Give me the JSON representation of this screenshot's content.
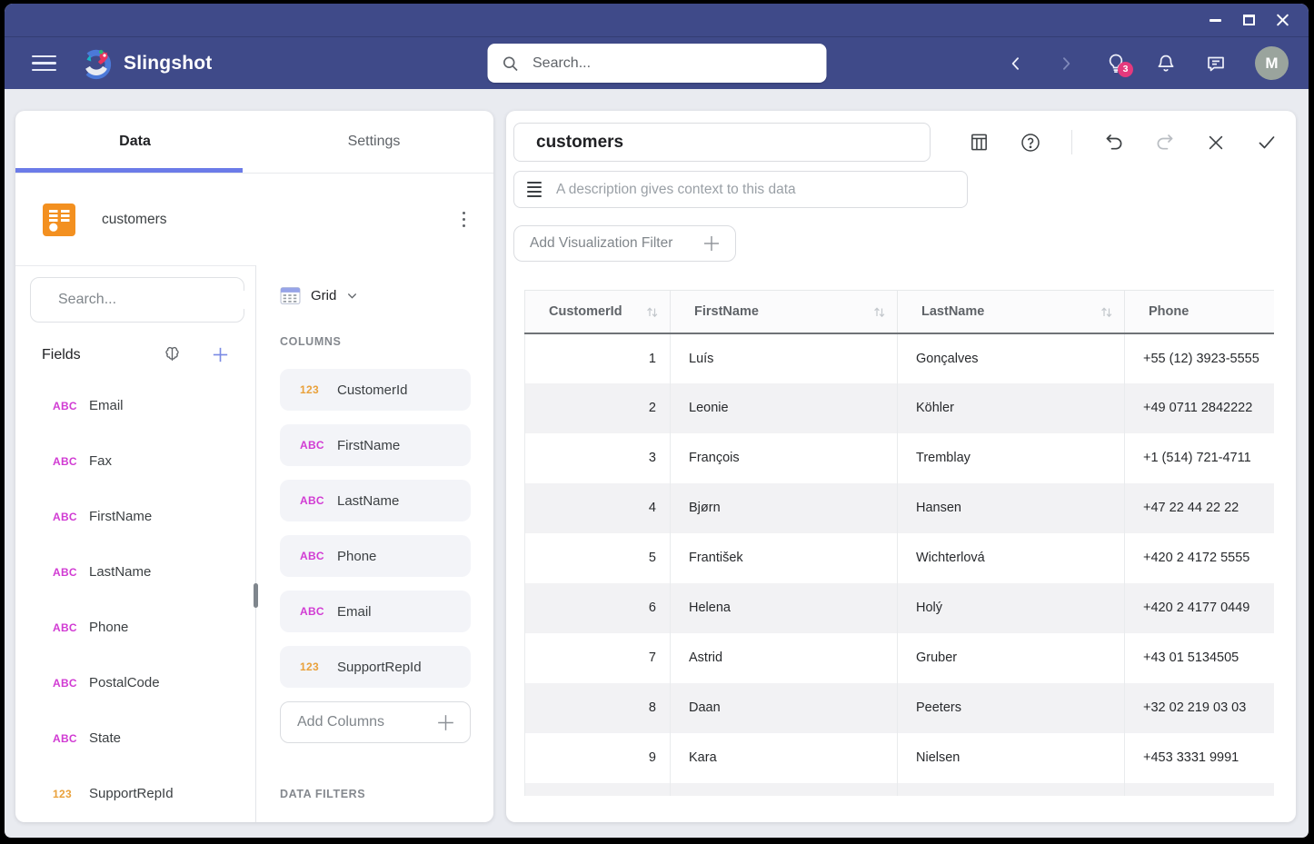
{
  "header": {
    "app_name": "Slingshot",
    "search_placeholder": "Search...",
    "ideas_badge": "3",
    "avatar_initial": "M"
  },
  "left_panel": {
    "tabs": [
      {
        "label": "Data",
        "active": true
      },
      {
        "label": "Settings",
        "active": false
      }
    ],
    "datasource_name": "customers",
    "fields_search_placeholder": "Search...",
    "fields_title": "Fields",
    "fields": [
      {
        "type": "ABC",
        "name": "Email"
      },
      {
        "type": "ABC",
        "name": "Fax"
      },
      {
        "type": "ABC",
        "name": "FirstName"
      },
      {
        "type": "ABC",
        "name": "LastName"
      },
      {
        "type": "ABC",
        "name": "Phone"
      },
      {
        "type": "ABC",
        "name": "PostalCode"
      },
      {
        "type": "ABC",
        "name": "State"
      },
      {
        "type": "123",
        "name": "SupportRepId"
      }
    ]
  },
  "columns_panel": {
    "chart_type_label": "Grid",
    "columns_title": "COLUMNS",
    "columns": [
      {
        "type": "123",
        "name": "CustomerId"
      },
      {
        "type": "ABC",
        "name": "FirstName"
      },
      {
        "type": "ABC",
        "name": "LastName"
      },
      {
        "type": "ABC",
        "name": "Phone"
      },
      {
        "type": "ABC",
        "name": "Email"
      },
      {
        "type": "123",
        "name": "SupportRepId"
      }
    ],
    "add_columns_label": "Add Columns",
    "data_filters_title": "DATA FILTERS"
  },
  "editor": {
    "title_value": "customers",
    "description_placeholder": "A description gives context to this data",
    "add_filter_label": "Add Visualization Filter"
  },
  "table": {
    "headers": [
      {
        "label": "CustomerId",
        "sortable": true
      },
      {
        "label": "FirstName",
        "sortable": true
      },
      {
        "label": "LastName",
        "sortable": true
      },
      {
        "label": "Phone",
        "sortable": false
      }
    ],
    "rows": [
      [
        "1",
        "Luís",
        "Gonçalves",
        "+55 (12) 3923-5555"
      ],
      [
        "2",
        "Leonie",
        "Köhler",
        "+49 0711 2842222"
      ],
      [
        "3",
        "François",
        "Tremblay",
        "+1 (514) 721-4711"
      ],
      [
        "4",
        "Bjørn",
        "Hansen",
        "+47 22 44 22 22"
      ],
      [
        "5",
        "František",
        "Wichterlová",
        "+420 2 4172 5555"
      ],
      [
        "6",
        "Helena",
        "Holý",
        "+420 2 4177 0449"
      ],
      [
        "7",
        "Astrid",
        "Gruber",
        "+43 01 5134505"
      ],
      [
        "8",
        "Daan",
        "Peeters",
        "+32 02 219 03 03"
      ],
      [
        "9",
        "Kara",
        "Nielsen",
        "+453 3331 9991"
      ]
    ],
    "truncated_next_row": true
  },
  "colors": {
    "header_bg": "#3f4a89",
    "accent_underline": "#6b7be8",
    "text_type_badge": "#d13bd3",
    "numeric_type_badge": "#e9a13b",
    "notification_badge": "#e5397d",
    "datasource_icon": "#f39020",
    "row_stripe": "#f2f2f4"
  }
}
